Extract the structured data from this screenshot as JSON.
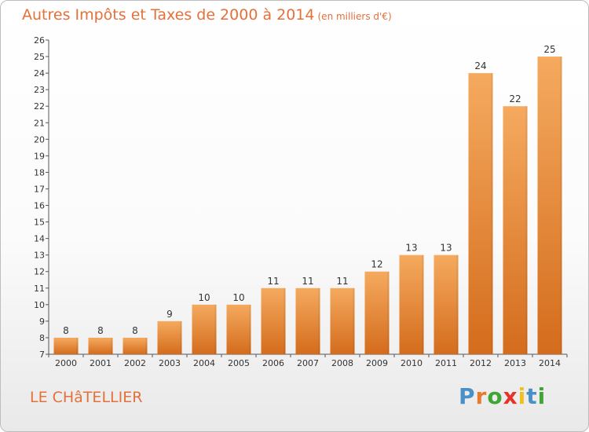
{
  "title": {
    "main": "Autres Impôts et Taxes de 2000 à 2014",
    "unit": "(en milliers d'€)"
  },
  "commune": "LE CHâTELLIER",
  "logo": {
    "letters": [
      "P",
      "r",
      "o",
      "x",
      "i",
      "t",
      "i"
    ],
    "colors": [
      "#4a90c8",
      "#e87a2e",
      "#3fa535",
      "#e63329",
      "#f0c020",
      "#4a90c8",
      "#3fa535"
    ]
  },
  "colors": {
    "bar_light": "#f5aa5f",
    "bar_dark": "#d46c1c",
    "accent": "#e4703a"
  },
  "chart_data": {
    "type": "bar",
    "categories": [
      "2000",
      "2001",
      "2002",
      "2003",
      "2004",
      "2005",
      "2006",
      "2007",
      "2008",
      "2009",
      "2010",
      "2011",
      "2012",
      "2013",
      "2014"
    ],
    "values": [
      8,
      8,
      8,
      9,
      10,
      10,
      11,
      11,
      11,
      12,
      13,
      13,
      24,
      22,
      25
    ],
    "ylim": [
      7,
      26
    ],
    "yticks": [
      7,
      8,
      9,
      10,
      11,
      12,
      13,
      14,
      15,
      16,
      17,
      18,
      19,
      20,
      21,
      22,
      23,
      24,
      25,
      26
    ],
    "grid": false,
    "xlabel": "",
    "ylabel": ""
  }
}
